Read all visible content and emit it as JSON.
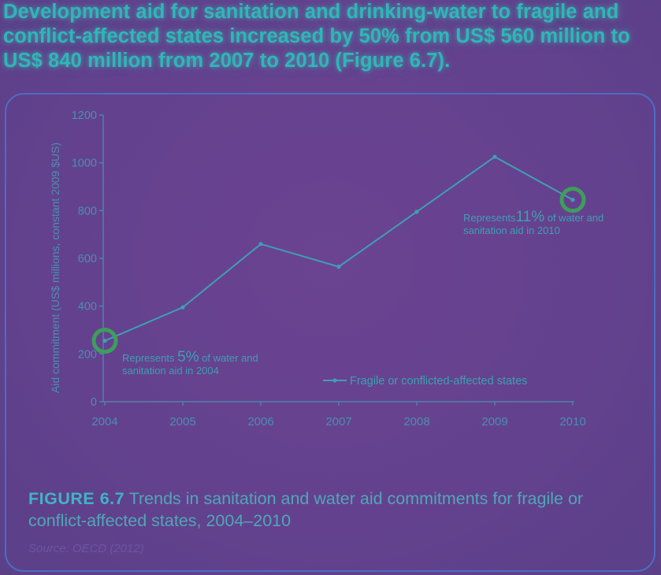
{
  "headline": "Development aid for sanitation and drinking-water to fragile and conflict-affected states increased by 50% from US$ 560 million to US$ 840 million from 2007 to 2010 (Figure 6.7).",
  "caption": {
    "figure_number": "FIGURE 6.7",
    "text": "Trends in sanitation and water aid commitments for fragile or conflict-affected states, 2004–2010"
  },
  "source": "Source: OECD (2012)",
  "colors": {
    "background": "#6b4391",
    "line": "#3e9fb2",
    "axis": "#4a8fb0",
    "headline": "#2fb6b6",
    "highlight_ring": "#3e9e5a"
  },
  "chart_data": {
    "type": "line",
    "x": [
      2004,
      2005,
      2006,
      2007,
      2008,
      2009,
      2010
    ],
    "series": [
      {
        "name": "Fragile or conflicted-affected states",
        "values": [
          255,
          395,
          660,
          565,
          795,
          1025,
          845
        ]
      }
    ],
    "xlabel": "",
    "ylabel": "Aid commitment (US$ millions, constant 2009 $US)",
    "ylim": [
      0,
      1200
    ],
    "yticks": [
      0,
      200,
      400,
      600,
      800,
      1000,
      1200
    ],
    "xticks": [
      "2004",
      "2005",
      "2006",
      "2007",
      "2008",
      "2009",
      "2010"
    ],
    "legend_position": "bottom-right",
    "grid": false,
    "annotations": [
      {
        "x": 2004,
        "y": 255,
        "prefix": "Represents ",
        "value": "5%",
        "line1_suffix": " of water and",
        "line2": "sanitation aid in 2004"
      },
      {
        "x": 2010,
        "y": 845,
        "prefix": "Represents",
        "value": "11%",
        "line1_suffix": " of water and",
        "line2": "sanitation aid in 2010"
      }
    ]
  }
}
